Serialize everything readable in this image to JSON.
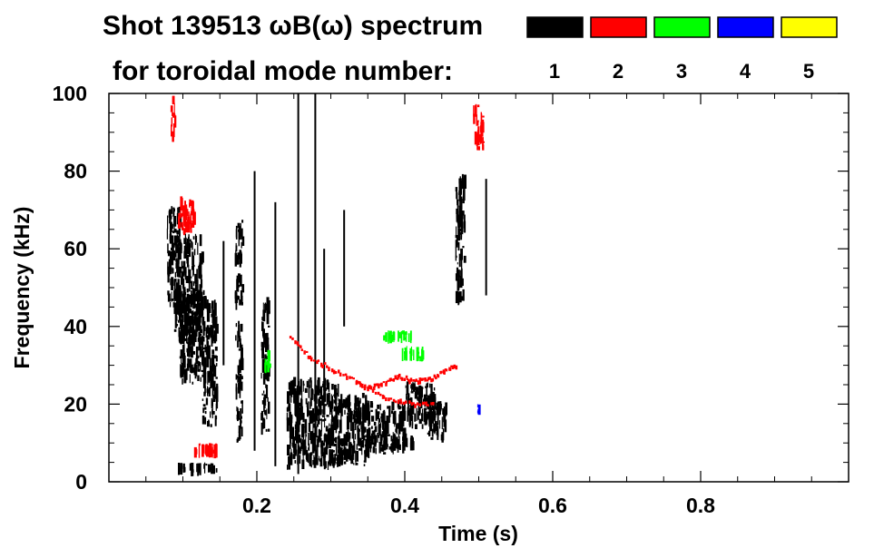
{
  "chart_data": {
    "type": "spectrogram",
    "title_line1": "Shot 139513 ωB(ω) spectrum",
    "title_line2": "for toroidal mode number:",
    "xlabel": "Time (s)",
    "ylabel": "Frequency (kHz)",
    "xlim": [
      0.0,
      1.0
    ],
    "ylim": [
      0,
      100
    ],
    "xticks": [
      {
        "value": 0.2,
        "label": "0.2"
      },
      {
        "value": 0.4,
        "label": "0.4"
      },
      {
        "value": 0.6,
        "label": "0.6"
      },
      {
        "value": 0.8,
        "label": "0.8"
      }
    ],
    "yticks": [
      {
        "value": 0,
        "label": "0"
      },
      {
        "value": 20,
        "label": "20"
      },
      {
        "value": 40,
        "label": "40"
      },
      {
        "value": 60,
        "label": "60"
      },
      {
        "value": 80,
        "label": "80"
      },
      {
        "value": 100,
        "label": "100"
      }
    ],
    "legend": [
      {
        "mode": "1",
        "color": "#000000"
      },
      {
        "mode": "2",
        "color": "#ff0000"
      },
      {
        "mode": "3",
        "color": "#00ff00"
      },
      {
        "mode": "4",
        "color": "#0000ff"
      },
      {
        "mode": "5",
        "color": "#ffff00"
      }
    ],
    "series": [
      {
        "name": "n=1",
        "color": "#000000",
        "blobs": [
          {
            "t0": 0.078,
            "t1": 0.095,
            "f0": 43,
            "f1": 71
          },
          {
            "t0": 0.088,
            "t1": 0.125,
            "f0": 35,
            "f1": 64
          },
          {
            "t0": 0.095,
            "t1": 0.128,
            "f0": 25,
            "f1": 50
          },
          {
            "t0": 0.125,
            "t1": 0.145,
            "f0": 14,
            "f1": 48
          },
          {
            "t0": 0.09,
            "t1": 0.145,
            "f0": 2,
            "f1": 5
          },
          {
            "t0": 0.17,
            "t1": 0.18,
            "f0": 10,
            "f1": 68
          },
          {
            "t0": 0.205,
            "t1": 0.215,
            "f0": 12,
            "f1": 48
          },
          {
            "t0": 0.24,
            "t1": 0.31,
            "f0": 3,
            "f1": 27
          },
          {
            "t0": 0.3,
            "t1": 0.35,
            "f0": 4,
            "f1": 23
          },
          {
            "t0": 0.34,
            "t1": 0.4,
            "f0": 7,
            "f1": 21
          },
          {
            "t0": 0.37,
            "t1": 0.41,
            "f0": 8,
            "f1": 12
          },
          {
            "t0": 0.4,
            "t1": 0.44,
            "f0": 13,
            "f1": 26
          },
          {
            "t0": 0.43,
            "t1": 0.455,
            "f0": 10,
            "f1": 21
          },
          {
            "t0": 0.468,
            "t1": 0.48,
            "f0": 45,
            "f1": 80
          }
        ],
        "lines": [
          {
            "t": 0.256,
            "f0": 2,
            "f1": 100
          },
          {
            "t": 0.279,
            "f0": 8,
            "f1": 100
          },
          {
            "t": 0.197,
            "f0": 8,
            "f1": 80
          },
          {
            "t": 0.225,
            "f0": 4,
            "f1": 72
          },
          {
            "t": 0.291,
            "f0": 22,
            "f1": 60
          },
          {
            "t": 0.318,
            "f0": 40,
            "f1": 70
          },
          {
            "t": 0.155,
            "f0": 30,
            "f1": 62
          },
          {
            "t": 0.51,
            "f0": 48,
            "f1": 78
          }
        ]
      },
      {
        "name": "n=2",
        "color": "#ff0000",
        "blobs": [
          {
            "t0": 0.083,
            "t1": 0.089,
            "f0": 87,
            "f1": 100
          },
          {
            "t0": 0.093,
            "t1": 0.115,
            "f0": 63,
            "f1": 74
          },
          {
            "t0": 0.11,
            "t1": 0.145,
            "f0": 6,
            "f1": 10
          },
          {
            "t0": 0.492,
            "t1": 0.505,
            "f0": 85,
            "f1": 98
          }
        ],
        "track": [
          [
            0.245,
            37
          ],
          [
            0.27,
            32
          ],
          [
            0.3,
            29
          ],
          [
            0.33,
            26
          ],
          [
            0.35,
            24
          ],
          [
            0.37,
            25
          ],
          [
            0.39,
            27
          ],
          [
            0.41,
            26
          ],
          [
            0.43,
            26
          ],
          [
            0.45,
            28
          ],
          [
            0.47,
            30
          ]
        ],
        "track2": [
          [
            0.35,
            24
          ],
          [
            0.38,
            21
          ],
          [
            0.41,
            20
          ],
          [
            0.44,
            20
          ]
        ]
      },
      {
        "name": "n=3",
        "color": "#00ff00",
        "blobs": [
          {
            "t0": 0.37,
            "t1": 0.41,
            "f0": 36,
            "f1": 39
          },
          {
            "t0": 0.395,
            "t1": 0.425,
            "f0": 31,
            "f1": 35
          },
          {
            "t0": 0.21,
            "t1": 0.218,
            "f0": 28,
            "f1": 34
          }
        ]
      },
      {
        "name": "n=4",
        "color": "#0000ff",
        "blobs": [
          {
            "t0": 0.498,
            "t1": 0.502,
            "f0": 17,
            "f1": 20
          }
        ]
      }
    ]
  }
}
